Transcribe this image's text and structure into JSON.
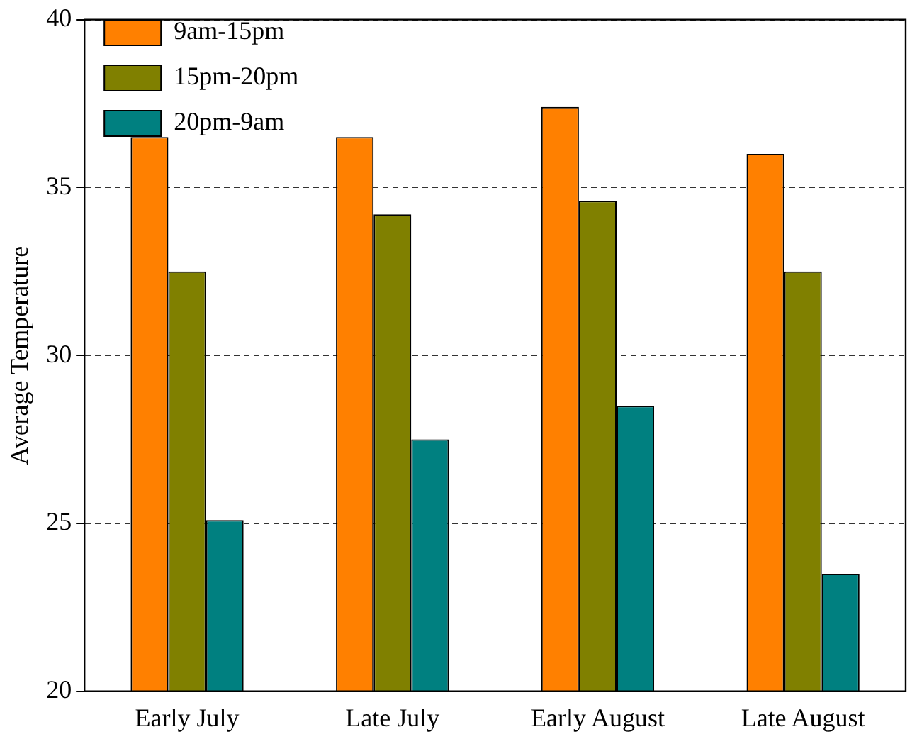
{
  "chart_data": {
    "type": "bar",
    "ylabel": "Average Temperature",
    "categories": [
      "Early July",
      "Late July",
      "Early August",
      "Late August"
    ],
    "series": [
      {
        "name": "9am-15pm",
        "color": "#ff8000",
        "values": [
          36.5,
          36.5,
          37.4,
          36.0
        ]
      },
      {
        "name": "15pm-20pm",
        "color": "#808000",
        "values": [
          32.5,
          34.2,
          34.6,
          32.5
        ]
      },
      {
        "name": "20pm-9am",
        "color": "#008080",
        "values": [
          25.1,
          27.5,
          28.5,
          23.5
        ]
      }
    ],
    "ylim": [
      20,
      40
    ],
    "yticks": [
      20,
      25,
      30,
      35,
      40
    ],
    "grid": "y",
    "legend": "top left"
  }
}
